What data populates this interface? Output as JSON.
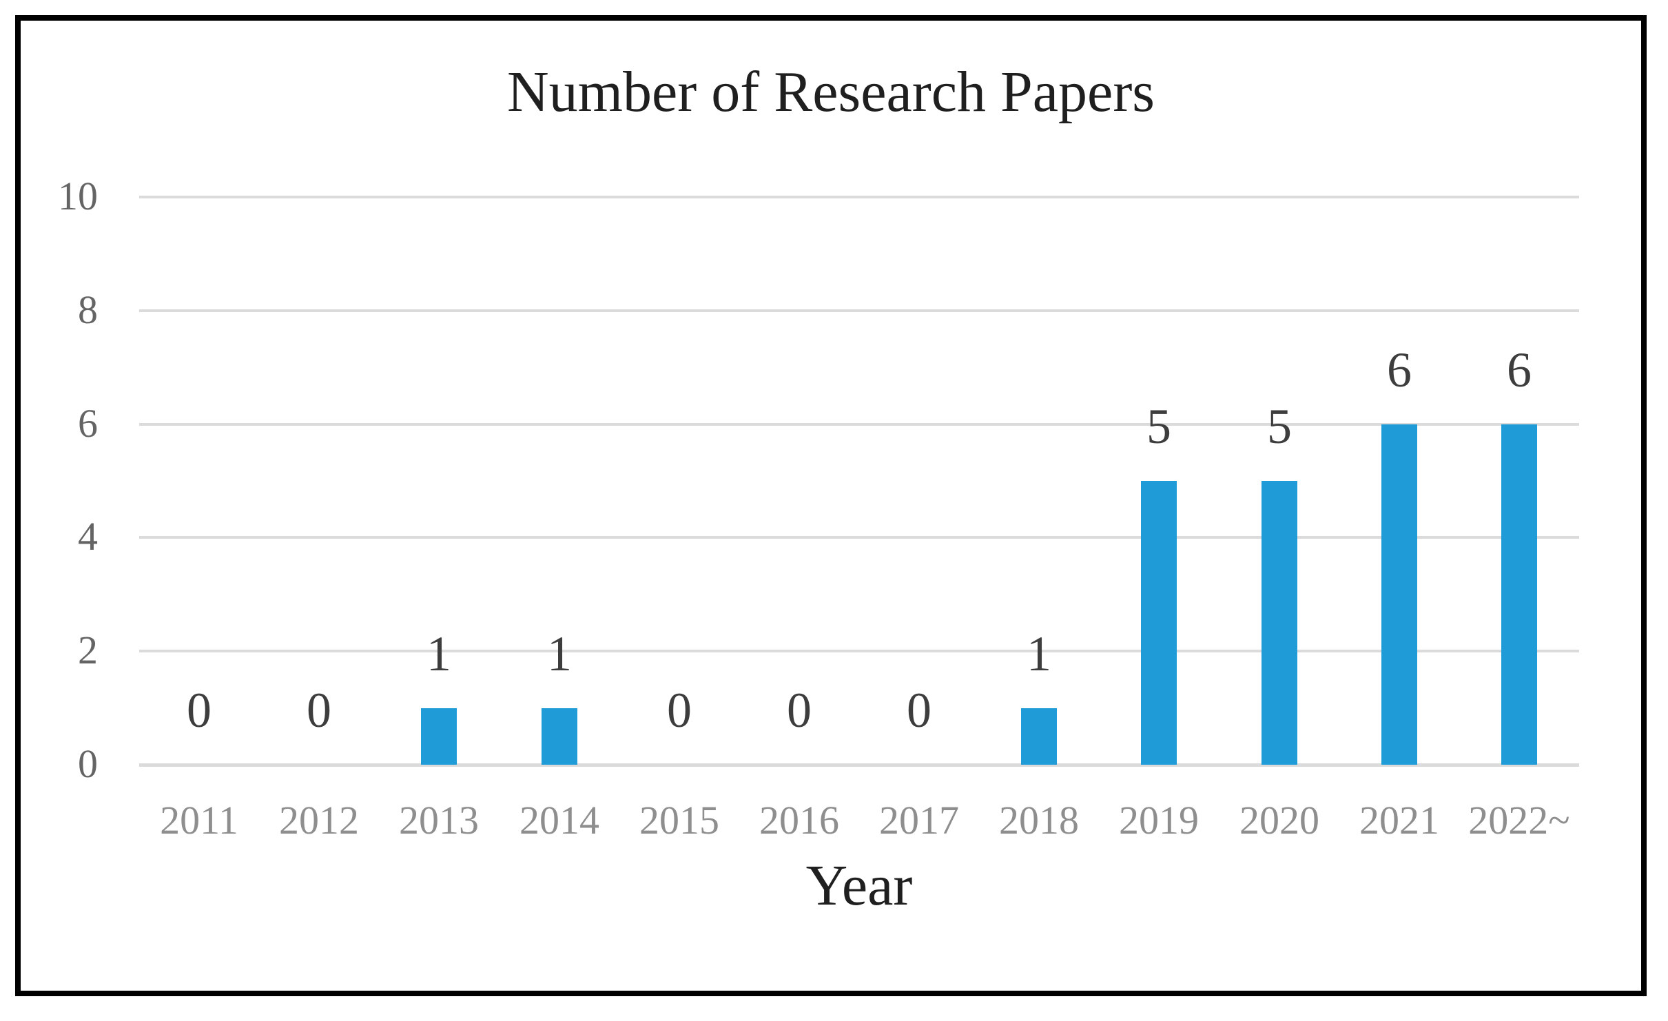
{
  "figure": {
    "background": "#FFFFFF",
    "border_color": "#000000"
  },
  "chart_data": {
    "type": "bar",
    "title": "Number of Research Papers",
    "xlabel": "Year",
    "ylabel": "",
    "categories": [
      "2011",
      "2012",
      "2013",
      "2014",
      "2015",
      "2016",
      "2017",
      "2018",
      "2019",
      "2020",
      "2021",
      "2022~"
    ],
    "values": [
      0,
      0,
      1,
      1,
      0,
      0,
      0,
      1,
      5,
      5,
      6,
      6
    ],
    "data_labels": [
      "0",
      "0",
      "1",
      "1",
      "0",
      "0",
      "0",
      "1",
      "5",
      "5",
      "6",
      "6"
    ],
    "ylim": [
      0,
      10
    ],
    "yticks": [
      0,
      2,
      4,
      6,
      8,
      10
    ],
    "ytick_labels": [
      "0",
      "2",
      "4",
      "6",
      "8",
      "10"
    ],
    "grid": true,
    "legend": "none",
    "colors": {
      "bar": "#1F9BD7",
      "gridline": "#DBDBDB",
      "axis_line": "#DBDBDB",
      "y_tick_label": "#646464",
      "x_tick_label": "#8E8E8E",
      "data_label": "#3D3D3D",
      "title": "#1F1F1F",
      "axis_title": "#1F1F1F"
    }
  }
}
